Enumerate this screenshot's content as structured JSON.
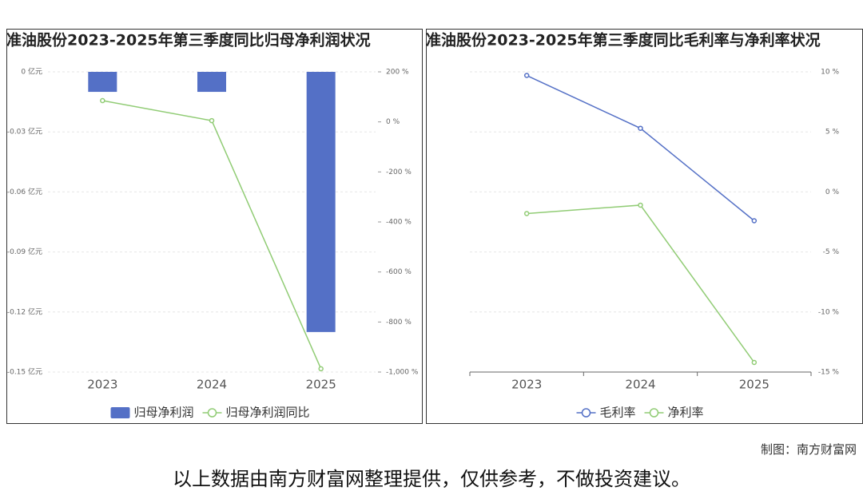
{
  "chart_data": [
    {
      "type": "combo",
      "title": "准油股份2023-2025年第三季度同比归母净利润状况",
      "categories": [
        "2023",
        "2024",
        "2025"
      ],
      "series": [
        {
          "name": "归母净利润",
          "type": "bar",
          "color": "#5470c6",
          "values": [
            -0.01,
            -0.01,
            -0.13
          ]
        },
        {
          "name": "归母净利润同比",
          "type": "line",
          "axis": "y2",
          "color": "#91cc75",
          "values": [
            85,
            5,
            -987
          ]
        }
      ],
      "ylim": [
        -0.15,
        0
      ],
      "yticks": [
        {
          "value": 0,
          "label": "0 亿元"
        },
        {
          "value": -0.03,
          "label": "-0.03 亿元"
        },
        {
          "value": -0.06,
          "label": "-0.06 亿元"
        },
        {
          "value": -0.09,
          "label": "-0.09 亿元"
        },
        {
          "value": -0.12,
          "label": "-0.12 亿元"
        },
        {
          "value": -0.15,
          "label": "-0.15 亿元"
        }
      ],
      "y2lim": [
        -1000,
        200
      ],
      "y2ticks": [
        {
          "value": 200,
          "label": "200 %"
        },
        {
          "value": 0,
          "label": "0 %"
        },
        {
          "value": -200,
          "label": "-200 %"
        },
        {
          "value": -400,
          "label": "-400 %"
        },
        {
          "value": -600,
          "label": "-600 %"
        },
        {
          "value": -800,
          "label": "-800 %"
        },
        {
          "value": -1000,
          "label": "-1,000 %"
        }
      ],
      "grid": true
    },
    {
      "type": "line",
      "title": "准油股份2023-2025年第三季度同比毛利率与净利率状况",
      "categories": [
        "2023",
        "2024",
        "2025"
      ],
      "series": [
        {
          "name": "毛利率",
          "color": "#5470c6",
          "values": [
            9.7,
            5.3,
            -2.4
          ]
        },
        {
          "name": "净利率",
          "color": "#91cc75",
          "values": [
            -1.8,
            -1.1,
            -14.2
          ]
        }
      ],
      "ylim": [
        -15,
        10
      ],
      "yticks": [
        {
          "value": 10,
          "label": "10 %"
        },
        {
          "value": 5,
          "label": "5 %"
        },
        {
          "value": 0,
          "label": "0 %"
        },
        {
          "value": -5,
          "label": "-5 %"
        },
        {
          "value": -10,
          "label": "-10 %"
        },
        {
          "value": -15,
          "label": "-15 %"
        }
      ],
      "grid": true
    }
  ],
  "footer": {
    "credit": "制图：南方财富网",
    "caption": "以上数据由南方财富网整理提供，仅供参考，不做投资建议。"
  }
}
